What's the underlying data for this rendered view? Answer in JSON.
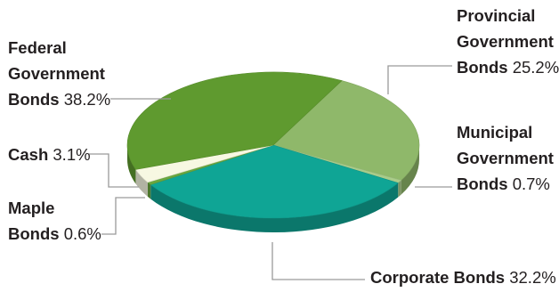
{
  "chart_data": {
    "type": "pie",
    "style": "3d",
    "slices": [
      {
        "label": "Provincial Government Bonds",
        "value": 25.2,
        "color": "#8fb86a"
      },
      {
        "label": "Municipal Government Bonds",
        "value": 0.7,
        "color": "#a9cc8a"
      },
      {
        "label": "Corporate Bonds",
        "value": 32.2,
        "color": "#0fa595"
      },
      {
        "label": "Maple Bonds",
        "value": 0.6,
        "color": "#6aa73e"
      },
      {
        "label": "Cash",
        "value": 3.1,
        "color": "#f7f8e2"
      },
      {
        "label": "Federal Government Bonds",
        "value": 38.2,
        "color": "#5f9a2f"
      }
    ]
  },
  "labels": {
    "federal": {
      "line1": "Federal",
      "line2": "Government",
      "line3": "Bonds",
      "pct": "38.2%"
    },
    "provincial": {
      "line1": "Provincial",
      "line2": "Government",
      "line3": "Bonds",
      "pct": "25.2%"
    },
    "municipal": {
      "line1": "Municipal",
      "line2": "Government",
      "line3": "Bonds",
      "pct": "0.7%"
    },
    "cash": {
      "line1": "Cash",
      "pct": "3.1%"
    },
    "maple": {
      "line1": "Maple",
      "line2": "Bonds",
      "pct": "0.6%"
    },
    "corporate": {
      "line1": "Corporate Bonds",
      "pct": "32.2%"
    }
  }
}
